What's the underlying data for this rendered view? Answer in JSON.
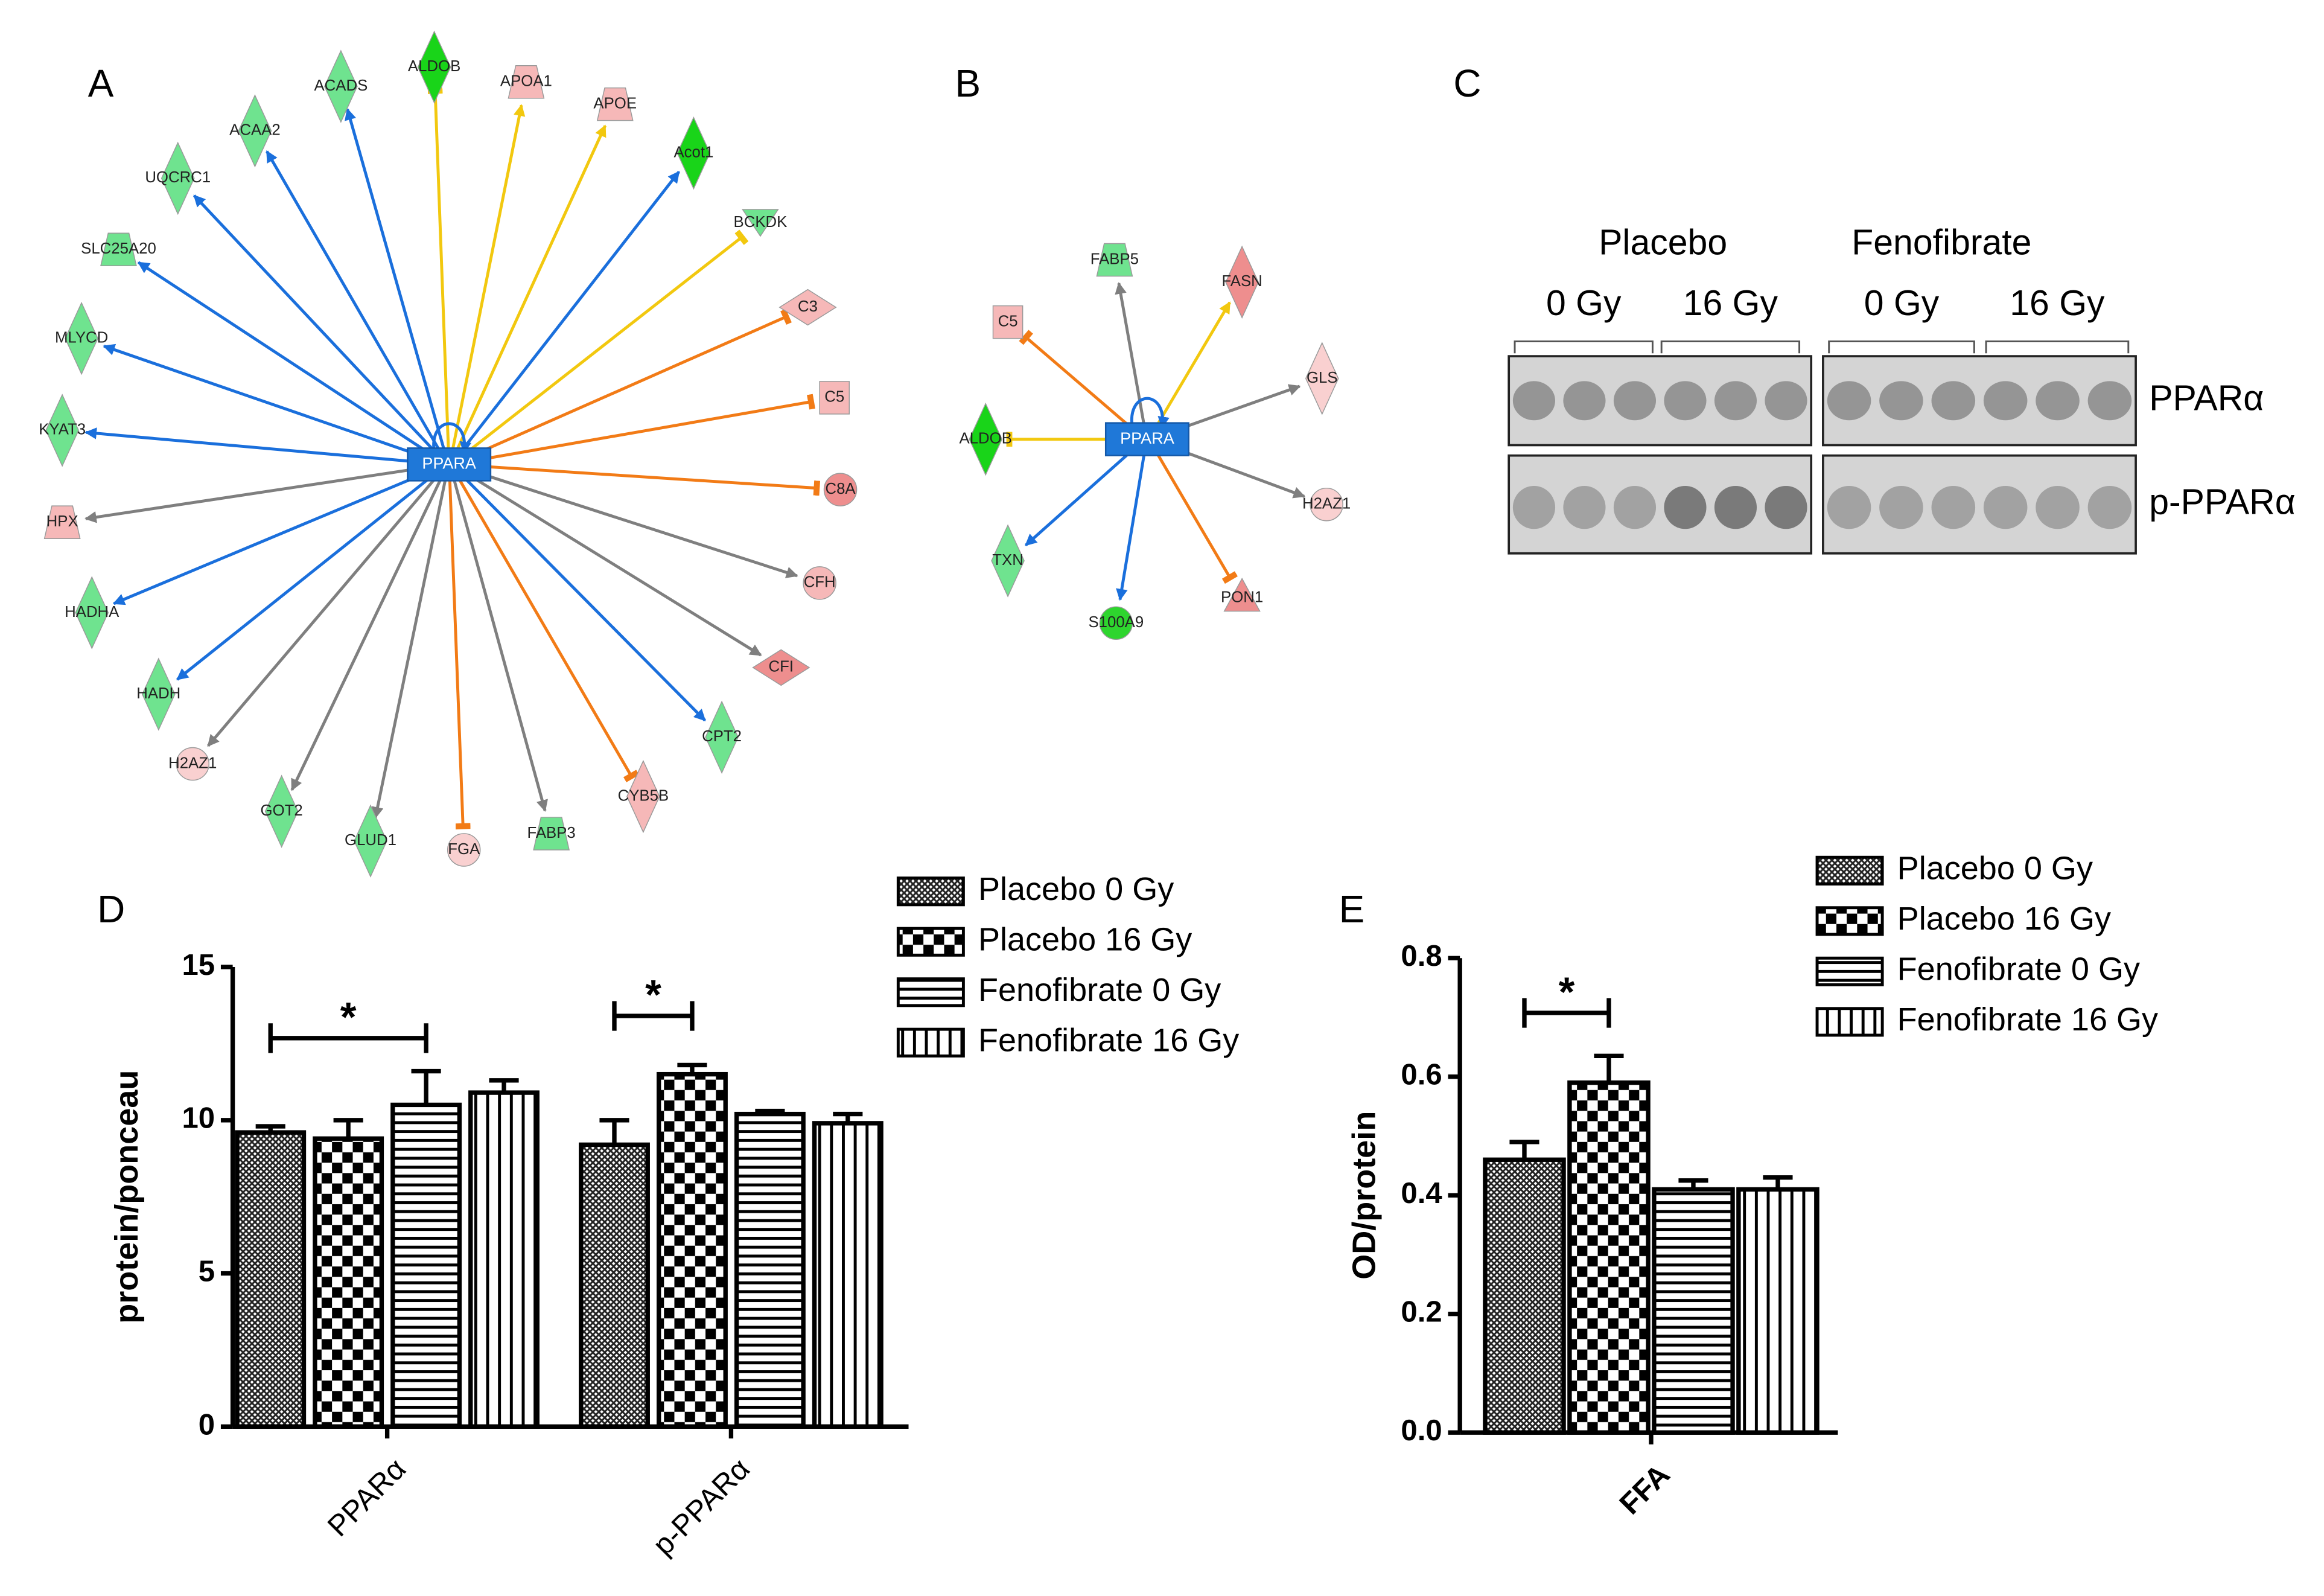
{
  "panel_labels": [
    "A",
    "B",
    "C",
    "D",
    "E"
  ],
  "network_a": {
    "center": "PPARA",
    "nodes": [
      "ALDOB",
      "APOA1",
      "APOE",
      "Acot1",
      "BCKDK",
      "C3",
      "C5",
      "C8A",
      "CFH",
      "CFI",
      "CPT2",
      "CYB5B",
      "FABP3",
      "FGA",
      "GLUD1",
      "GOT2",
      "H2AZ1",
      "HADH",
      "HADHA",
      "HPX",
      "KYAT3",
      "MLYCD",
      "SLC25A20",
      "UQCRC1",
      "ACAA2",
      "ACADS"
    ]
  },
  "network_b": {
    "center": "PPARA",
    "nodes": [
      "FABP5",
      "FASN",
      "GLS",
      "H2AZ1",
      "PON1",
      "S100A9",
      "TXN",
      "ALDOB",
      "C5"
    ]
  },
  "blot": {
    "groups": [
      "Placebo",
      "Fenofibrate"
    ],
    "doses": [
      "0 Gy",
      "16 Gy",
      "0 Gy",
      "16 Gy"
    ],
    "rows": [
      "PPARα",
      "p-PPARα"
    ]
  },
  "chart_data": [
    {
      "type": "bar",
      "ylabel": "protein/ponceau",
      "categories": [
        "PPARα",
        "p-PPARα"
      ],
      "series": [
        {
          "name": "Placebo 0 Gy",
          "pattern": "crosshatch",
          "values": [
            9.6,
            9.2
          ],
          "errors": [
            0.2,
            0.8
          ]
        },
        {
          "name": "Placebo 16 Gy",
          "pattern": "checker",
          "values": [
            9.4,
            11.5
          ],
          "errors": [
            0.6,
            0.3
          ]
        },
        {
          "name": "Fenofibrate 0 Gy",
          "pattern": "hlines",
          "values": [
            10.5,
            10.2
          ],
          "errors": [
            1.1,
            0.1
          ]
        },
        {
          "name": "Fenofibrate 16 Gy",
          "pattern": "vlines",
          "values": [
            10.9,
            9.9
          ],
          "errors": [
            0.4,
            0.3
          ]
        }
      ],
      "ylim": [
        0,
        15
      ],
      "yticks": [
        0,
        5,
        10,
        15
      ],
      "annotations": [
        "*",
        "*"
      ]
    },
    {
      "type": "bar",
      "ylabel": "OD/protein",
      "categories": [
        "FFA"
      ],
      "series": [
        {
          "name": "Placebo 0 Gy",
          "pattern": "crosshatch",
          "values": [
            0.46
          ],
          "errors": [
            0.03
          ]
        },
        {
          "name": "Placebo 16 Gy",
          "pattern": "checker",
          "values": [
            0.59
          ],
          "errors": [
            0.045
          ]
        },
        {
          "name": "Fenofibrate 0 Gy",
          "pattern": "hlines",
          "values": [
            0.41
          ],
          "errors": [
            0.015
          ]
        },
        {
          "name": "Fenofibrate 16 Gy",
          "pattern": "vlines",
          "values": [
            0.41
          ],
          "errors": [
            0.02
          ]
        }
      ],
      "ylim": [
        0,
        0.8
      ],
      "yticks": [
        {
          "value": 0,
          "label": "0.0"
        },
        0.2,
        0.4,
        0.6,
        0.8
      ],
      "annotations": [
        "*"
      ]
    }
  ]
}
